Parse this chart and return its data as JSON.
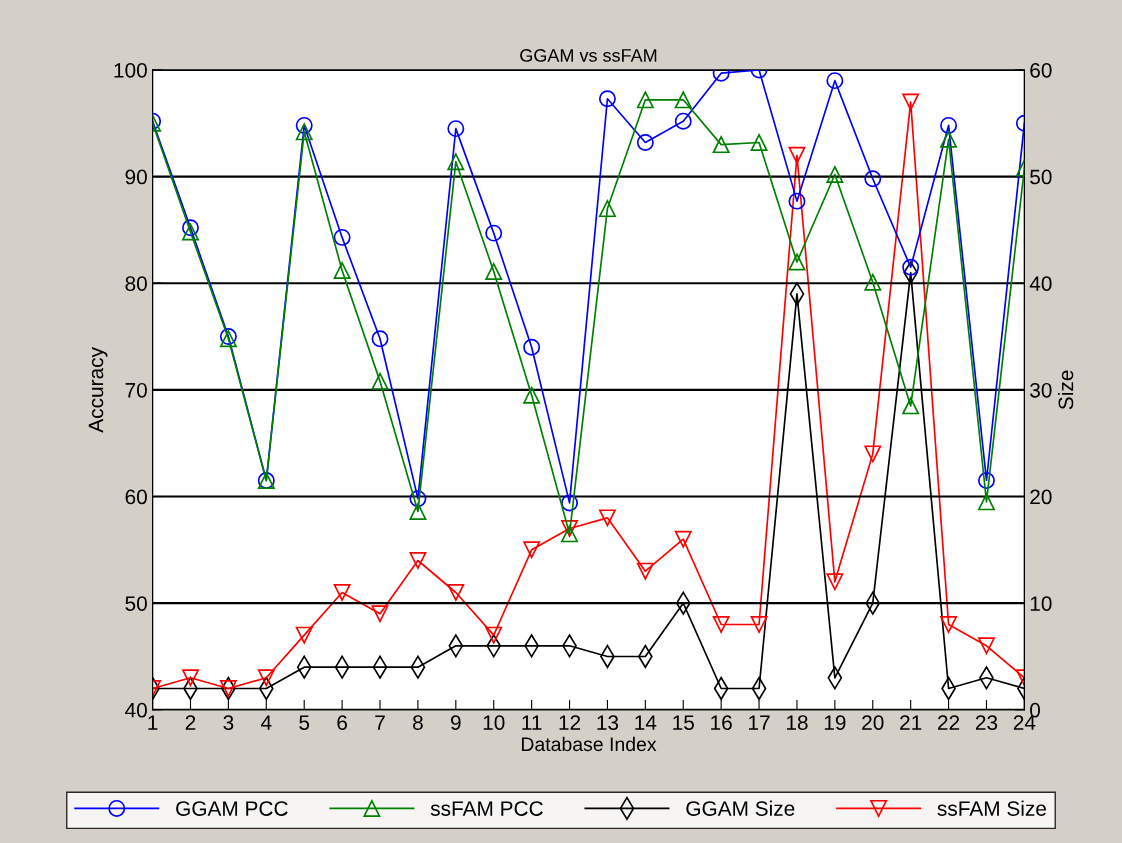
{
  "chart_data": {
    "type": "line",
    "title": "GGAM vs ssFAM",
    "xlabel": "Database Index",
    "ylabel": "Accuracy",
    "y2label": "Size",
    "x": [
      1,
      2,
      3,
      4,
      5,
      6,
      7,
      8,
      9,
      10,
      11,
      12,
      13,
      14,
      15,
      16,
      17,
      18,
      19,
      20,
      21,
      22,
      23,
      24
    ],
    "xlim": [
      1,
      24
    ],
    "xticks": [
      1,
      2,
      3,
      4,
      5,
      6,
      7,
      8,
      9,
      10,
      11,
      12,
      13,
      14,
      15,
      16,
      17,
      18,
      19,
      20,
      21,
      22,
      23,
      24
    ],
    "ylim": [
      40,
      100
    ],
    "yticks": [
      40,
      50,
      60,
      70,
      80,
      90,
      100
    ],
    "y2lim": [
      0,
      60
    ],
    "y2ticks": [
      0,
      10,
      20,
      30,
      40,
      50,
      60
    ],
    "grid": "y",
    "legend": "bottom",
    "series": [
      {
        "name": "GGAM PCC",
        "color": "#0000ff",
        "marker": "circle",
        "values": [
          95.2,
          85.2,
          75,
          61.5,
          94.8,
          84.3,
          74.8,
          59.8,
          94.5,
          84.7,
          74,
          59.4,
          97.3,
          93.2,
          95.2,
          99.7,
          100,
          87.7,
          99,
          89.8,
          81.5,
          94.8,
          61.5,
          95
        ]
      },
      {
        "name": "ssFAM PCC",
        "color": "#008000",
        "marker": "triangle",
        "values": [
          95,
          84.8,
          74.8,
          61.5,
          94.2,
          81.2,
          70.8,
          58.6,
          91.4,
          81.1,
          69.5,
          56.5,
          87,
          97.2,
          97.2,
          93,
          93.2,
          82,
          90.2,
          80.1,
          68.5,
          93.5,
          59.5,
          90.8
        ]
      },
      {
        "name": "GGAM Size",
        "color": "#000000",
        "marker": "diamond",
        "axis": "y2",
        "values": [
          2,
          2,
          2,
          2,
          4,
          4,
          4,
          4,
          6,
          6,
          6,
          6,
          5,
          5,
          10,
          2,
          2,
          39,
          3,
          10,
          41,
          2,
          3,
          2
        ]
      },
      {
        "name": "ssFAM Size",
        "color": "#ff0000",
        "marker": "triangle_down",
        "axis": "y2",
        "values": [
          2,
          3,
          2,
          3,
          7,
          11,
          9,
          14,
          11,
          7,
          15,
          17,
          18,
          13,
          16,
          8,
          8,
          52,
          12,
          24,
          57,
          8,
          6,
          3
        ]
      }
    ]
  }
}
